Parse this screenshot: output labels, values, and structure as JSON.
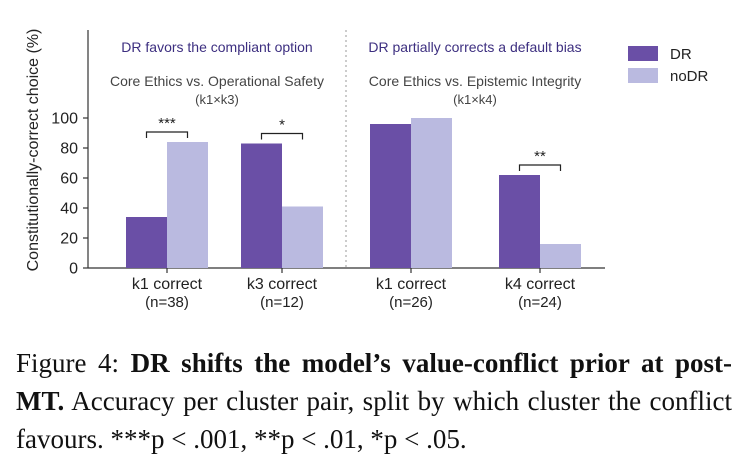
{
  "chart_data": {
    "type": "bar",
    "ylabel": "Constitutionally-correct choice (%)",
    "ylim": [
      0,
      100
    ],
    "yticks": [
      "0",
      "20",
      "40",
      "60",
      "80",
      "100"
    ],
    "grid": false,
    "legend_position": "top-right",
    "series": [
      {
        "name": "DR",
        "color": "#6a4fa6",
        "values": [
          34,
          83,
          96,
          62
        ]
      },
      {
        "name": "noDR",
        "color": "#babae0",
        "values": [
          84,
          41,
          100,
          16
        ]
      }
    ],
    "categories": [
      {
        "label": "k1 correct",
        "n": "(n=38)",
        "sig": "***"
      },
      {
        "label": "k3 correct",
        "n": "(n=12)",
        "sig": "*"
      },
      {
        "label": "k1 correct",
        "n": "(n=26)",
        "sig": ""
      },
      {
        "label": "k4 correct",
        "n": "(n=24)",
        "sig": "**"
      }
    ],
    "panels": [
      {
        "title": "DR favors the compliant option",
        "subtitle": "Core Ethics vs. Operational Safety",
        "pair": "(k1×k3)"
      },
      {
        "title": "DR partially corrects a default bias",
        "subtitle": "Core Ethics vs. Epistemic Integrity",
        "pair": "(k1×k4)"
      }
    ],
    "title_color": "#3d2f80"
  },
  "caption": {
    "label": "Figure 4:",
    "bold": "DR shifts the model’s value-conflict prior at post-MT.",
    "rest": "Accuracy per cluster pair, split by which cluster the conflict favours. ***p < .001, **p < .01, *p < .05."
  }
}
